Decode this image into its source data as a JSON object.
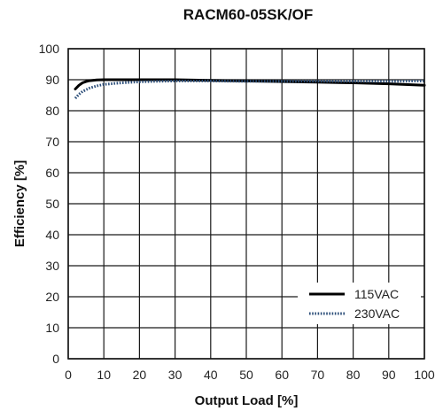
{
  "chart_data": {
    "type": "line",
    "title": "RACM60-05SK/OF",
    "xlabel": "Output Load [%]",
    "ylabel": "Efficiency [%]",
    "xlim": [
      0,
      100
    ],
    "ylim": [
      0,
      100
    ],
    "x_ticks": [
      0,
      10,
      20,
      30,
      40,
      50,
      60,
      70,
      80,
      90,
      100
    ],
    "y_ticks": [
      0,
      10,
      20,
      30,
      40,
      50,
      60,
      70,
      80,
      90,
      100
    ],
    "grid": true,
    "legend_position": "bottom-right",
    "series": [
      {
        "name": "115VAC",
        "color": "#000000",
        "style": "solid",
        "x": [
          2,
          3,
          4,
          5,
          6,
          8,
          10,
          15,
          20,
          30,
          40,
          50,
          60,
          70,
          80,
          90,
          100
        ],
        "y": [
          87.0,
          88.2,
          89.0,
          89.4,
          89.7,
          89.9,
          90.0,
          90.0,
          90.0,
          90.0,
          89.8,
          89.6,
          89.4,
          89.2,
          89.0,
          88.7,
          88.2
        ]
      },
      {
        "name": "230VAC",
        "color": "#2d4f7a",
        "style": "dotted",
        "x": [
          2,
          3,
          4,
          6,
          8,
          10,
          15,
          20,
          25,
          30,
          40,
          50,
          60,
          70,
          80,
          90,
          100
        ],
        "y": [
          84.0,
          85.3,
          86.2,
          87.3,
          88.0,
          88.5,
          89.0,
          89.3,
          89.5,
          89.6,
          89.6,
          89.5,
          89.5,
          89.5,
          89.5,
          89.5,
          89.6
        ]
      }
    ]
  }
}
